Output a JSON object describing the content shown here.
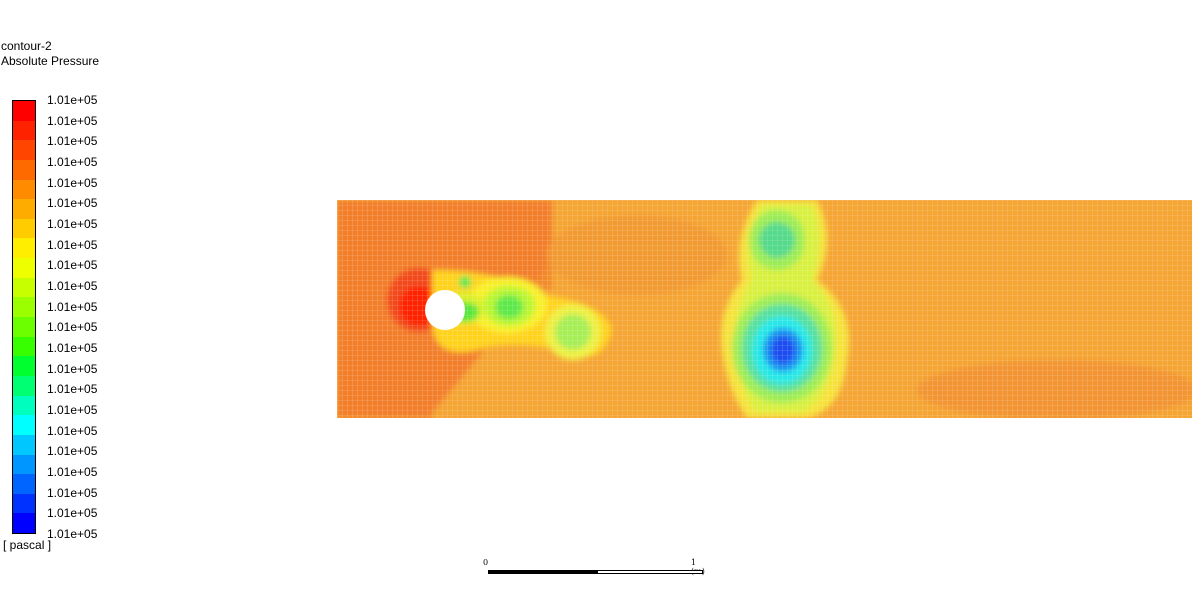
{
  "title": {
    "name": "contour-2",
    "variable": "Absolute Pressure"
  },
  "legend": {
    "unit": "[ pascal ]",
    "labels": [
      "1.01e+05",
      "1.01e+05",
      "1.01e+05",
      "1.01e+05",
      "1.01e+05",
      "1.01e+05",
      "1.01e+05",
      "1.01e+05",
      "1.01e+05",
      "1.01e+05",
      "1.01e+05",
      "1.01e+05",
      "1.01e+05",
      "1.01e+05",
      "1.01e+05",
      "1.01e+05",
      "1.01e+05",
      "1.01e+05",
      "1.01e+05",
      "1.01e+05",
      "1.01e+05",
      "1.01e+05"
    ],
    "colors": [
      "#ff0000",
      "#ff2200",
      "#ff4500",
      "#ff6a00",
      "#ff8c00",
      "#ffac00",
      "#ffcc00",
      "#ffee00",
      "#eeff00",
      "#c8ff00",
      "#9cff00",
      "#6cff00",
      "#38ff00",
      "#00ff2e",
      "#00ff72",
      "#00ffbe",
      "#00ffff",
      "#00c8ff",
      "#0096ff",
      "#0064ff",
      "#0032ff",
      "#0000ff"
    ]
  },
  "scale_bar": {
    "start_label": "0",
    "end_label": "1 (m)"
  }
}
